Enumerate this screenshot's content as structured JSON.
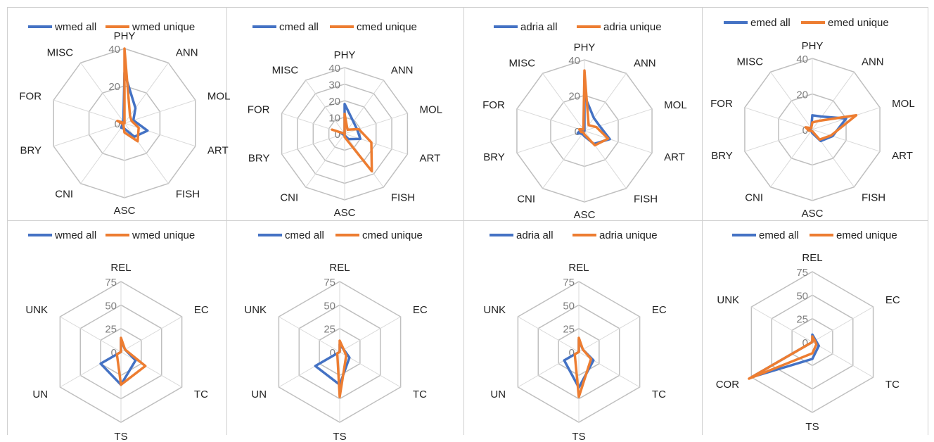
{
  "colors": {
    "all": "#4472c4",
    "unique": "#ed7d31",
    "grid": "#bfbfbf"
  },
  "chart_data": [
    {
      "type": "radar",
      "legend_position": "top",
      "axes": [
        "PHY",
        "ANN",
        "MOL",
        "ART",
        "FISH",
        "ASC",
        "CNI",
        "BRY",
        "FOR",
        "MISC"
      ],
      "ticks": [
        "0",
        "20",
        "40"
      ],
      "range": [
        0,
        40
      ],
      "series": [
        {
          "name": "wmed all",
          "color": "#4472c4",
          "values": [
            27,
            10,
            5,
            13,
            9,
            3,
            3,
            1,
            2,
            1
          ]
        },
        {
          "name": "wmed unique",
          "color": "#ed7d31",
          "values": [
            40,
            5,
            4,
            8,
            12,
            5,
            1,
            1,
            4,
            0
          ]
        }
      ]
    },
    {
      "type": "radar",
      "legend_position": "top",
      "axes": [
        "PHY",
        "ANN",
        "MOL",
        "ART",
        "FISH",
        "ASC",
        "CNI",
        "BRY",
        "FOR",
        "MISC"
      ],
      "ticks": [
        "0",
        "10",
        "20",
        "30",
        "40"
      ],
      "range": [
        0,
        40
      ],
      "series": [
        {
          "name": "cmed all",
          "color": "#4472c4",
          "values": [
            18,
            9,
            8,
            10,
            4,
            1,
            1,
            1,
            3,
            0
          ]
        },
        {
          "name": "cmed unique",
          "color": "#ed7d31",
          "values": [
            12,
            3,
            9,
            17,
            28,
            2,
            0,
            0,
            8,
            0
          ]
        }
      ]
    },
    {
      "type": "radar",
      "legend_position": "top",
      "axes": [
        "PHY",
        "ANN",
        "MOL",
        "ART",
        "FISH",
        "ASC",
        "CNI",
        "BRY",
        "FOR",
        "MISC"
      ],
      "ticks": [
        "0",
        "20",
        "40"
      ],
      "range": [
        0,
        40
      ],
      "series": [
        {
          "name": "adria all",
          "color": "#4472c4",
          "values": [
            20,
            9,
            9,
            15,
            9,
            3,
            2,
            4,
            2,
            0
          ]
        },
        {
          "name": "adria unique",
          "color": "#ed7d31",
          "values": [
            34,
            4,
            7,
            14,
            10,
            2,
            1,
            2,
            3,
            1
          ]
        }
      ]
    },
    {
      "type": "radar",
      "legend_position": "top",
      "axes": [
        "PHY",
        "ANN",
        "MOL",
        "ART",
        "FISH",
        "ASC",
        "CNI",
        "BRY",
        "FOR",
        "MISC"
      ],
      "ticks": [
        "0",
        "20",
        "40"
      ],
      "range": [
        0,
        40
      ],
      "series": [
        {
          "name": "emed all",
          "color": "#4472c4",
          "values": [
            8,
            9,
            20,
            12,
            8,
            2,
            1,
            1,
            2,
            1
          ]
        },
        {
          "name": "emed unique",
          "color": "#ed7d31",
          "values": [
            4,
            6,
            26,
            11,
            7,
            1,
            1,
            2,
            4,
            1
          ]
        }
      ]
    },
    {
      "type": "radar",
      "legend_position": "top",
      "axes": [
        "REL",
        "EC",
        "TC",
        "TS",
        "UN",
        "UNK"
      ],
      "ticks": [
        "0",
        "25",
        "50",
        "75"
      ],
      "range": [
        0,
        75
      ],
      "series": [
        {
          "name": "wmed all",
          "color": "#4472c4",
          "values": [
            13,
            5,
            18,
            35,
            25,
            0
          ]
        },
        {
          "name": "wmed unique",
          "color": "#ed7d31",
          "values": [
            15,
            5,
            30,
            35,
            5,
            0
          ]
        }
      ]
    },
    {
      "type": "radar",
      "legend_position": "top",
      "axes": [
        "REL",
        "EC",
        "TC",
        "TS",
        "UN",
        "UNK"
      ],
      "ticks": [
        "0",
        "25",
        "50",
        "75"
      ],
      "range": [
        0,
        75
      ],
      "series": [
        {
          "name": "cmed all",
          "color": "#4472c4",
          "values": [
            8,
            5,
            12,
            35,
            30,
            0
          ]
        },
        {
          "name": "cmed unique",
          "color": "#ed7d31",
          "values": [
            12,
            5,
            8,
            48,
            3,
            0
          ]
        }
      ]
    },
    {
      "type": "radar",
      "legend_position": "top",
      "axes": [
        "REL",
        "EC",
        "TC",
        "TS",
        "UN",
        "UNK"
      ],
      "ticks": [
        "0",
        "25",
        "50",
        "75"
      ],
      "range": [
        0,
        75
      ],
      "series": [
        {
          "name": "adria all",
          "color": "#4472c4",
          "values": [
            13,
            5,
            18,
            38,
            18,
            0
          ]
        },
        {
          "name": "adria unique",
          "color": "#ed7d31",
          "values": [
            15,
            5,
            15,
            48,
            5,
            0
          ]
        }
      ]
    },
    {
      "type": "radar",
      "legend_position": "top",
      "axes": [
        "REL",
        "EC",
        "TC",
        "TS",
        "COR",
        "UNK"
      ],
      "ticks": [
        "0",
        "25",
        "50",
        "75"
      ],
      "range": [
        0,
        75
      ],
      "series": [
        {
          "name": "emed all",
          "color": "#4472c4",
          "values": [
            8,
            4,
            8,
            18,
            75,
            0
          ]
        },
        {
          "name": "emed unique",
          "color": "#ed7d31",
          "values": [
            6,
            3,
            5,
            12,
            78,
            0
          ]
        }
      ]
    }
  ]
}
